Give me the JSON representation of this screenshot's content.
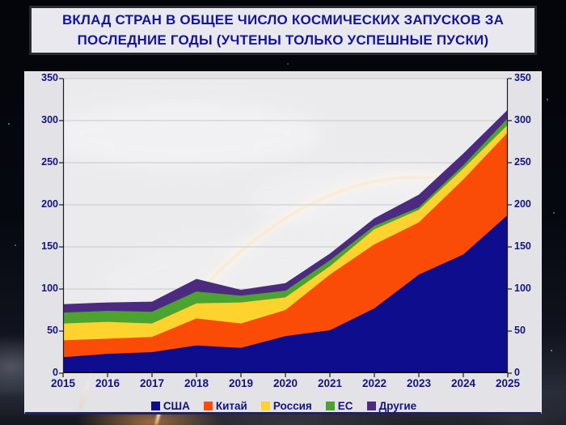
{
  "title": "ВКЛАД СТРАН В ОБЩЕЕ ЧИСЛО КОСМИЧЕСКИХ ЗАПУСКОВ ЗА ПОСЛЕДНИЕ ГОДЫ (УЧТЕНЫ ТОЛЬКО УСПЕШНЫЕ ПУСКИ)",
  "colors": {
    "title_text": "#15159b",
    "title_box_bg": "#e8e8ee",
    "title_box_border": "#2a2a33",
    "panel_bg": "#e2e2e7",
    "plot_bg": "#ebebee",
    "grid": "#c8c8cd",
    "axis": "#1b1b22",
    "tick_label": "#14147e",
    "legend_text": "#14147e"
  },
  "chart_data": {
    "type": "area",
    "stacked": true,
    "title": "ВКЛАД СТРАН В ОБЩЕЕ ЧИСЛО КОСМИЧЕСКИХ ЗАПУСКОВ ЗА ПОСЛЕДНИЕ ГОДЫ (УЧТЕНЫ ТОЛЬКО УСПЕШНЫЕ ПУСКИ)",
    "xlabel": "",
    "ylabel": "",
    "x": [
      2015,
      2016,
      2017,
      2018,
      2019,
      2020,
      2021,
      2022,
      2023,
      2024,
      2025
    ],
    "series": [
      {
        "name": "США",
        "color": "#0d0d8e",
        "values": [
          19,
          23,
          25,
          33,
          30,
          44,
          51,
          77,
          117,
          141,
          188
        ]
      },
      {
        "name": "Китай",
        "color": "#fb4c07",
        "values": [
          20,
          18,
          18,
          32,
          29,
          31,
          66,
          76,
          62,
          89,
          98
        ]
      },
      {
        "name": "Россия",
        "color": "#ffd32e",
        "values": [
          20,
          20,
          16,
          18,
          25,
          15,
          10,
          18,
          15,
          13,
          9
        ]
      },
      {
        "name": "ЕС",
        "color": "#4da32f",
        "values": [
          13,
          13,
          14,
          14,
          8,
          8,
          7,
          4,
          3,
          4,
          8
        ]
      },
      {
        "name": "Другие",
        "color": "#4b2a80",
        "values": [
          10,
          10,
          12,
          15,
          7,
          9,
          8,
          9,
          15,
          14,
          10
        ]
      }
    ],
    "y_ticks": [
      0,
      50,
      100,
      150,
      200,
      250,
      300,
      350
    ],
    "ylim": [
      0,
      350
    ],
    "grid": true,
    "legend_position": "bottom",
    "y_axis_sides": [
      "left",
      "right"
    ]
  }
}
